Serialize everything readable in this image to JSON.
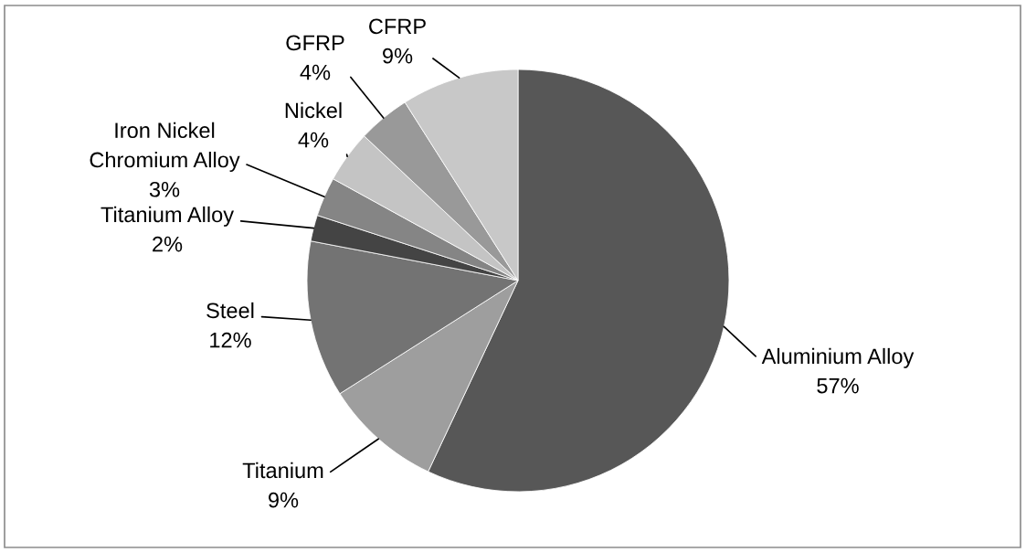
{
  "chart_data": {
    "type": "pie",
    "categories": [
      "Aluminium Alloy",
      "Titanium",
      "Steel",
      "Titanium Alloy",
      "Iron Nickel Chromium Alloy",
      "Nickel",
      "GFRP",
      "CFRP"
    ],
    "values": [
      57,
      9,
      12,
      2,
      3,
      4,
      4,
      9
    ],
    "colors": [
      "#575757",
      "#9e9e9e",
      "#737373",
      "#444444",
      "#858585",
      "#c4c4c4",
      "#999999",
      "#c8c8c8"
    ],
    "value_labels": [
      "57%",
      "9%",
      "12%",
      "2%",
      "3%",
      "4%",
      "4%",
      "9%"
    ]
  }
}
